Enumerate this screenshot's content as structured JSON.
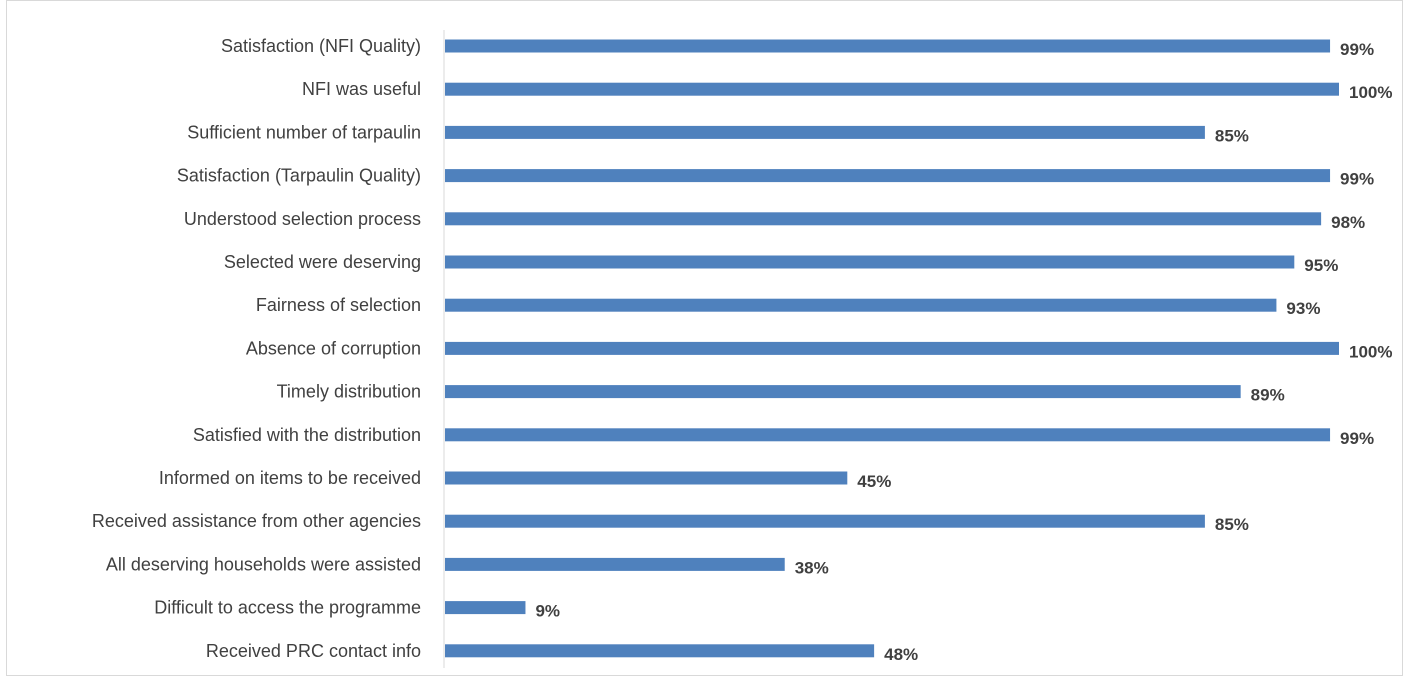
{
  "chart_data": {
    "type": "bar",
    "orientation": "horizontal",
    "categories": [
      "Satisfaction (NFI Quality)",
      "NFI was useful",
      "Sufficient number of tarpaulin",
      "Satisfaction (Tarpaulin Quality)",
      "Understood selection process",
      "Selected were deserving",
      "Fairness of selection",
      "Absence of corruption",
      "Timely distribution",
      "Satisfied with the distribution",
      "Informed on items to be received",
      "Received assistance from other agencies",
      "All deserving households were assisted",
      "Difficult to access the programme",
      "Received PRC contact info"
    ],
    "values": [
      99,
      100,
      85,
      99,
      98,
      95,
      93,
      100,
      89,
      99,
      45,
      85,
      38,
      9,
      48
    ],
    "value_labels": [
      "99%",
      "100%",
      "85%",
      "99%",
      "98%",
      "95%",
      "93%",
      "100%",
      "89%",
      "99%",
      "45%",
      "85%",
      "38%",
      "9%",
      "48%"
    ],
    "xlim": [
      0,
      100
    ],
    "grid": false,
    "legend": "none",
    "bar_color": "#4f81bd",
    "label_color": "#404040"
  }
}
